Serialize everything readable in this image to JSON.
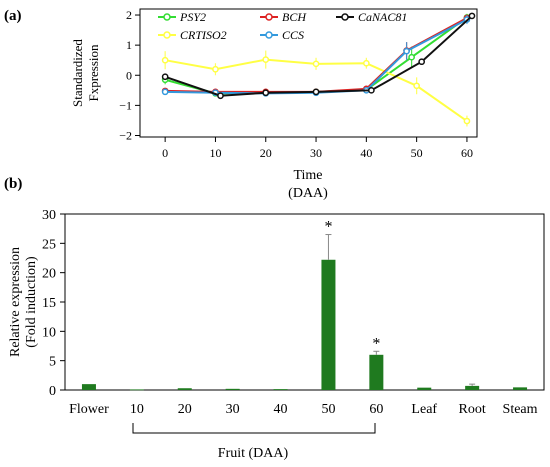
{
  "figure": {
    "panel_a_label": "(a)",
    "panel_b_label": "(b)"
  },
  "chart_data": [
    {
      "type": "line",
      "panel": "(a)",
      "ylabel_line1": "Standardized",
      "ylabel_line2": "Fxpression",
      "xlabel_line1": "Time",
      "xlabel_line2": "(DAA)",
      "x": [
        0,
        10,
        20,
        30,
        40,
        50,
        60
      ],
      "xlim": [
        -5,
        62
      ],
      "ylim": [
        -2.05,
        2.2
      ],
      "yticks": [
        -2,
        -1,
        0,
        1,
        2
      ],
      "xticks": [
        0,
        10,
        20,
        30,
        40,
        50,
        60
      ],
      "legend_placement": "top-center",
      "legend_layout": [
        [
          "PSY2",
          "BCH",
          "CaNAC81"
        ],
        [
          "CRTISO2",
          "CCS"
        ]
      ],
      "series": [
        {
          "name": "PSY2",
          "color": "#33dd33",
          "x": [
            0,
            10,
            20,
            30,
            40,
            49,
            60
          ],
          "values": [
            -0.15,
            -0.6,
            -0.58,
            -0.55,
            -0.48,
            0.6,
            1.92
          ],
          "err": [
            0.15,
            0.08,
            0.06,
            0.06,
            0.06,
            0.35,
            0.12
          ]
        },
        {
          "name": "CRTISO2",
          "color": "#ffff44",
          "x": [
            0,
            10,
            20,
            30,
            40,
            50,
            60
          ],
          "values": [
            0.5,
            0.2,
            0.52,
            0.38,
            0.4,
            -0.35,
            -1.52
          ],
          "err": [
            0.3,
            0.2,
            0.3,
            0.2,
            0.18,
            0.28,
            0.18
          ]
        },
        {
          "name": "BCH",
          "color": "#dd2222",
          "x": [
            0,
            10,
            20,
            30,
            40,
            48,
            60
          ],
          "values": [
            -0.52,
            -0.55,
            -0.55,
            -0.55,
            -0.45,
            0.82,
            1.9
          ],
          "err": [
            0.05,
            0.05,
            0.05,
            0.05,
            0.05,
            0.28,
            0.1
          ]
        },
        {
          "name": "CCS",
          "color": "#3399dd",
          "x": [
            0,
            10,
            20,
            30,
            40,
            48,
            60
          ],
          "values": [
            -0.55,
            -0.58,
            -0.6,
            -0.58,
            -0.5,
            0.8,
            1.85
          ],
          "err": [
            0.05,
            0.05,
            0.05,
            0.05,
            0.05,
            0.3,
            0.15
          ]
        },
        {
          "name": "CaNAC81",
          "color": "#111111",
          "x": [
            0,
            11,
            20,
            30,
            41,
            51,
            61
          ],
          "values": [
            -0.05,
            -0.68,
            -0.58,
            -0.55,
            -0.5,
            0.45,
            1.97
          ],
          "err": [
            0.05,
            0.05,
            0.05,
            0.05,
            0.05,
            0.1,
            0.1
          ]
        }
      ]
    },
    {
      "type": "bar",
      "panel": "(b)",
      "ylabel_line1": "Relative expression",
      "ylabel_line2": "(Fold induction)",
      "group_label": "Fruit (DAA)",
      "ylim": [
        0,
        30
      ],
      "yticks": [
        0,
        5,
        10,
        15,
        20,
        25,
        30
      ],
      "categories": [
        "Flower",
        "10",
        "20",
        "30",
        "40",
        "50",
        "60",
        "Leaf",
        "Root",
        "Steam"
      ],
      "values": [
        1.0,
        0.1,
        0.3,
        0.2,
        0.15,
        22.2,
        6.0,
        0.4,
        0.7,
        0.45
      ],
      "errors": [
        0,
        0,
        0,
        0,
        0,
        4.3,
        0.6,
        0,
        0.3,
        0
      ],
      "significance": [
        "",
        "",
        "",
        "",
        "",
        "*",
        "*",
        "",
        "",
        ""
      ],
      "bar_color": "#1f7a1f"
    }
  ]
}
